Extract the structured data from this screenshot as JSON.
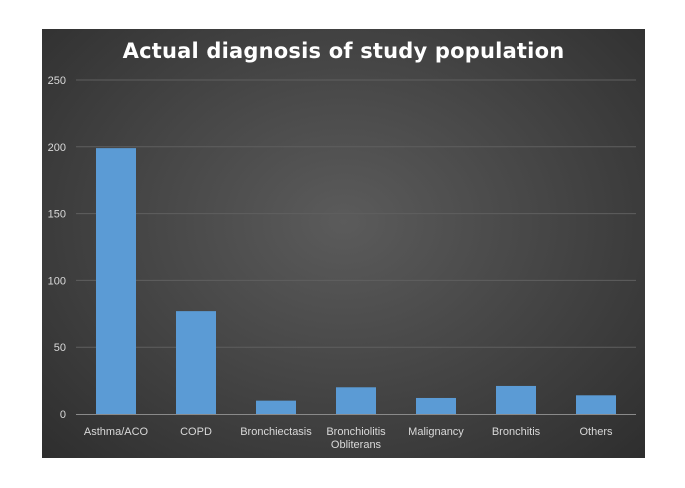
{
  "chart_data": {
    "type": "bar",
    "title": "Actual diagnosis of study population",
    "categories": [
      "Asthma/ACO",
      "COPD",
      "Bronchiectasis",
      "Bronchiolitis Obliterans",
      "Malignancy",
      "Bronchitis",
      "Others"
    ],
    "category_lines": [
      [
        "Asthma/ACO"
      ],
      [
        "COPD"
      ],
      [
        "Bronchiectasis"
      ],
      [
        "Bronchiolitis",
        "Obliterans"
      ],
      [
        "Malignancy"
      ],
      [
        "Bronchitis"
      ],
      [
        "Others"
      ]
    ],
    "values": [
      199,
      77,
      10,
      20,
      12,
      21,
      14
    ],
    "ylim": [
      0,
      250
    ],
    "yticks": [
      0,
      50,
      100,
      150,
      200,
      250
    ],
    "xlabel": "",
    "ylabel": "",
    "grid": true,
    "legend": "none",
    "bar_color": "#5b9bd5",
    "background": "#474747"
  }
}
